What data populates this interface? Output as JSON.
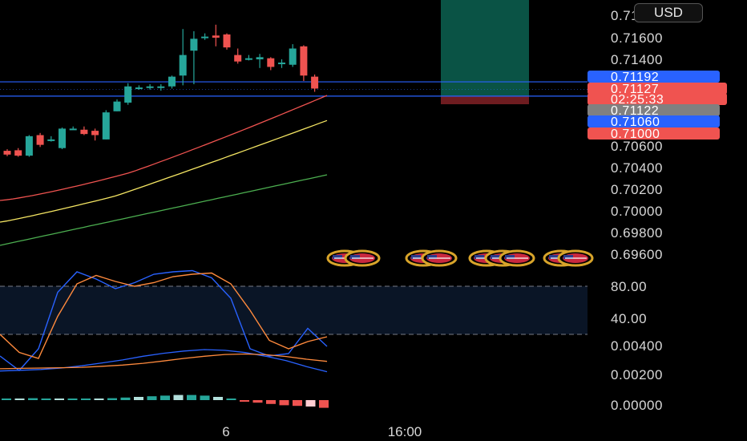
{
  "currency": "USD",
  "price_axis": {
    "labels": [
      "0.71800",
      "0.71600",
      "0.71400",
      "0.70600",
      "0.70400",
      "0.70200",
      "0.70000",
      "0.69800",
      "0.69600"
    ]
  },
  "price_tags": [
    {
      "text": "0.71192",
      "color": "#2962ff"
    },
    {
      "text": "0.71127",
      "color": "#f05350"
    },
    {
      "text": "02:25:33",
      "color": "#f05350"
    },
    {
      "text": "0.71122",
      "color": "#808080"
    },
    {
      "text": "0.71060",
      "color": "#2962ff"
    },
    {
      "text": "0.71000",
      "color": "#f05350"
    }
  ],
  "stoch_axis": {
    "labels": [
      "80.00",
      "40.00"
    ]
  },
  "macd_axis": {
    "labels": [
      "0.00400",
      "0.00200",
      "0.00000"
    ]
  },
  "time_axis": {
    "labels": [
      "6",
      "16:00"
    ]
  },
  "colors": {
    "up": "#26a69a",
    "down": "#ef5350",
    "blue": "#2962ff",
    "ma_red": "#f05350",
    "ma_yellow": "#f5e663",
    "ma_green": "#4caf50",
    "stoch_k": "#2962ff",
    "stoch_d": "#ff8a3d"
  },
  "chart_data": [
    {
      "type": "candlestick",
      "title": "",
      "ylim": [
        0.6955,
        0.718
      ],
      "candles": [
        {
          "o": 0.70555,
          "h": 0.7057,
          "l": 0.70505,
          "c": 0.7052
        },
        {
          "o": 0.7056,
          "h": 0.7058,
          "l": 0.705,
          "c": 0.7051
        },
        {
          "o": 0.7051,
          "h": 0.707,
          "l": 0.705,
          "c": 0.7069
        },
        {
          "o": 0.707,
          "h": 0.7072,
          "l": 0.7059,
          "c": 0.7061
        },
        {
          "o": 0.7066,
          "h": 0.7069,
          "l": 0.7064,
          "c": 0.7066
        },
        {
          "o": 0.7058,
          "h": 0.7077,
          "l": 0.7057,
          "c": 0.7076
        },
        {
          "o": 0.7076,
          "h": 0.7078,
          "l": 0.7075,
          "c": 0.7076
        },
        {
          "o": 0.7075,
          "h": 0.7078,
          "l": 0.707,
          "c": 0.7071
        },
        {
          "o": 0.7074,
          "h": 0.7076,
          "l": 0.7065,
          "c": 0.707
        },
        {
          "o": 0.7066,
          "h": 0.7093,
          "l": 0.7066,
          "c": 0.7091
        },
        {
          "o": 0.7092,
          "h": 0.7103,
          "l": 0.7092,
          "c": 0.7101
        },
        {
          "o": 0.71,
          "h": 0.7118,
          "l": 0.7098,
          "c": 0.7115
        },
        {
          "o": 0.7114,
          "h": 0.7116,
          "l": 0.7112,
          "c": 0.7114
        },
        {
          "o": 0.7114,
          "h": 0.7117,
          "l": 0.7112,
          "c": 0.7115
        },
        {
          "o": 0.7115,
          "h": 0.7117,
          "l": 0.7111,
          "c": 0.7115
        },
        {
          "o": 0.7115,
          "h": 0.7125,
          "l": 0.7113,
          "c": 0.7124
        },
        {
          "o": 0.7125,
          "h": 0.7168,
          "l": 0.7116,
          "c": 0.7144
        },
        {
          "o": 0.7148,
          "h": 0.7166,
          "l": 0.7117,
          "c": 0.7159
        },
        {
          "o": 0.7161,
          "h": 0.7164,
          "l": 0.7158,
          "c": 0.7161
        },
        {
          "o": 0.7162,
          "h": 0.7172,
          "l": 0.7152,
          "c": 0.716
        },
        {
          "o": 0.7163,
          "h": 0.7164,
          "l": 0.7149,
          "c": 0.7151
        },
        {
          "o": 0.7144,
          "h": 0.715,
          "l": 0.7136,
          "c": 0.7138
        },
        {
          "o": 0.7141,
          "h": 0.7144,
          "l": 0.7139,
          "c": 0.7141
        },
        {
          "o": 0.714,
          "h": 0.7145,
          "l": 0.7132,
          "c": 0.7142
        },
        {
          "o": 0.7141,
          "h": 0.7142,
          "l": 0.713,
          "c": 0.7133
        },
        {
          "o": 0.7136,
          "h": 0.714,
          "l": 0.7132,
          "c": 0.7137
        },
        {
          "o": 0.7135,
          "h": 0.7154,
          "l": 0.7133,
          "c": 0.715
        },
        {
          "o": 0.7152,
          "h": 0.7153,
          "l": 0.712,
          "c": 0.7125
        },
        {
          "o": 0.7124,
          "h": 0.7126,
          "l": 0.711,
          "c": 0.7113
        }
      ],
      "horizontal_lines": [
        0.71192,
        0.7106
      ],
      "position_box": {
        "entry": 0.7106,
        "target_top": 0.718,
        "stop": 0.71
      }
    },
    {
      "type": "line",
      "title": "",
      "ylim": [
        0,
        100
      ],
      "bands": [
        80,
        40
      ],
      "series": [
        {
          "values": [
            22,
            10,
            28,
            75,
            92,
            86,
            78,
            83,
            90,
            92,
            93,
            87,
            70,
            28,
            22,
            24,
            45,
            30
          ]
        },
        {
          "values": [
            40,
            25,
            20,
            55,
            82,
            89,
            84,
            80,
            83,
            88,
            90,
            91,
            82,
            60,
            35,
            28,
            34,
            38
          ]
        }
      ]
    },
    {
      "type": "line",
      "title": "",
      "ylim": [
        0,
        0.005
      ],
      "series": [
        {
          "values": [
            0.0023,
            0.00235,
            0.0024,
            0.0025,
            0.00265,
            0.00285,
            0.00305,
            0.0033,
            0.0035,
            0.00365,
            0.00375,
            0.0037,
            0.00355,
            0.0033,
            0.003,
            0.0026,
            0.00225
          ]
        },
        {
          "values": [
            0.00245,
            0.00248,
            0.0025,
            0.00252,
            0.00255,
            0.00262,
            0.0027,
            0.00282,
            0.00298,
            0.00315,
            0.0033,
            0.00342,
            0.00345,
            0.0034,
            0.00328,
            0.0031,
            0.00295
          ]
        }
      ],
      "histogram": [
        4e-05,
        5e-05,
        6e-05,
        5e-05,
        4e-05,
        3e-05,
        2e-05,
        4e-05,
        6e-05,
        8e-05,
        0.0001,
        0.00012,
        0.00014,
        0.00016,
        0.00016,
        0.00014,
        0.0001,
        4e-05,
        -3e-05,
        -8e-05,
        -0.00012,
        -0.00016,
        -0.00018,
        -0.0002,
        -0.00024
      ]
    }
  ]
}
